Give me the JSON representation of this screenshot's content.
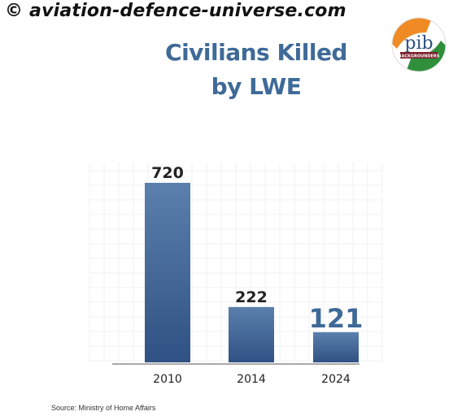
{
  "watermark": "© aviation-defence-universe.com",
  "logo": {
    "text": "pib",
    "badge": "BACKGROUNDERS"
  },
  "colors": {
    "title": "#3f6a98",
    "bar_top": "#5b80ad",
    "bar_bottom": "#2f5183",
    "value_text": "#222222",
    "highlight_value": "#3f6a98",
    "baseline": "#a8a8a8"
  },
  "chart_data": {
    "type": "bar",
    "title": "Civilians Killed by LWE",
    "title_lines": [
      "Civilians Killed",
      "by LWE"
    ],
    "categories": [
      "2010",
      "2014",
      "2024"
    ],
    "values": [
      720,
      222,
      121
    ],
    "xlabel": "",
    "ylabel": "",
    "ylim": [
      0,
      720
    ],
    "grid": true,
    "legend": "none",
    "data_labels": [
      "720",
      "222",
      "121"
    ]
  },
  "source": "Source: Ministry of Home Affairs"
}
